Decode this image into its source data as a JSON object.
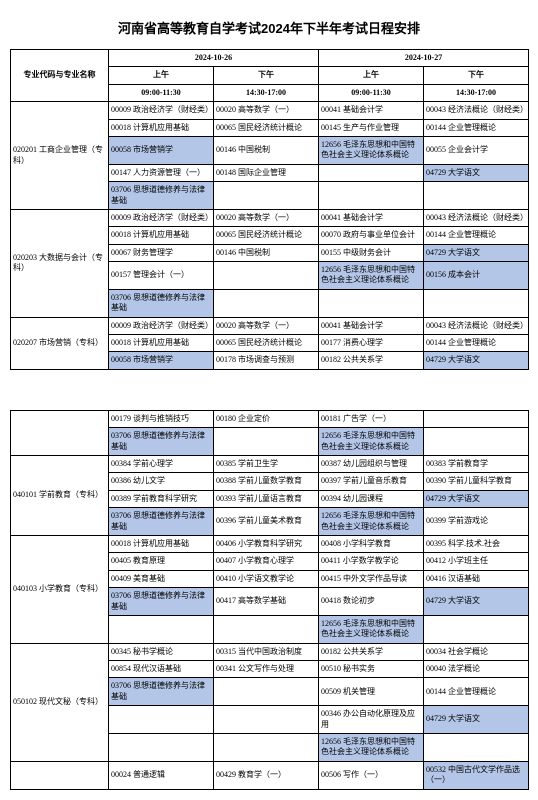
{
  "title": "河南省高等教育自学考试2024年下半年考试日程安排",
  "header": {
    "major_col": "专业代码与专业名称",
    "date1": "2024-10-26",
    "date2": "2024-10-27",
    "am": "上午",
    "pm": "下午",
    "t1": "09:00-11:30",
    "t2": "14:30-17:00"
  },
  "hl_color": "#b4c6e7",
  "colors": {
    "border": "#000000",
    "bg": "#ffffff"
  },
  "majors1": [
    {
      "code": "020201 工商企业管理（专科）",
      "rows": [
        [
          "00009 政治经济学（财经类）",
          "00020 高等数学（一）",
          "00041 基础会计学",
          "00043 经济法概论（财经类）"
        ],
        [
          "00018 计算机应用基础",
          "00065 国民经济统计概论",
          "00145 生产与作业管理",
          "00144 企业管理概论"
        ],
        [
          "00058 市场营销学",
          "00146 中国税制",
          "12656 毛泽东思想和中国特色社会主义理论体系概论",
          "00055 企业会计学"
        ],
        [
          "00147 人力资源管理（一）",
          "00148 国际企业管理",
          "",
          "04729 大学语文"
        ],
        [
          "03706 思想道德修养与法律基础",
          "",
          "",
          ""
        ]
      ],
      "hl": [
        [
          2,
          0
        ],
        [
          3,
          3
        ],
        [
          4,
          0
        ],
        [
          2,
          2
        ]
      ]
    },
    {
      "code": "020203 大数据与会计（专科）",
      "rows": [
        [
          "00009 政治经济学（财经类）",
          "00020 高等数学（一）",
          "00041 基础会计学",
          "00043 经济法概论（财经类）"
        ],
        [
          "00018 计算机应用基础",
          "00065 国民经济统计概论",
          "00070 政府与事业单位会计",
          "00144 企业管理概论"
        ],
        [
          "00067 财务管理学",
          "00146 中国税制",
          "00155 中级财务会计",
          "04729 大学语文"
        ],
        [
          "00157 管理会计（一）",
          "",
          "12656 毛泽东思想和中国特色社会主义理论体系概论",
          "00156 成本会计"
        ],
        [
          "03706 思想道德修养与法律基础",
          "",
          "",
          ""
        ]
      ],
      "hl": [
        [
          2,
          3
        ],
        [
          3,
          3
        ],
        [
          4,
          0
        ],
        [
          3,
          2
        ]
      ]
    },
    {
      "code": "020207 市场营销（专科）",
      "rows": [
        [
          "00009 政治经济学（财经类）",
          "00020 高等数学（一）",
          "00041 基础会计学",
          "00043 经济法概论（财经类）"
        ],
        [
          "00018 计算机应用基础",
          "00065 国民经济统计概论",
          "00177 消费心理学",
          "00144 企业管理概论"
        ],
        [
          "00058 市场营销学",
          "00178 市场调查与预测",
          "00182 公共关系学",
          "04729 大学语文"
        ]
      ],
      "hl": [
        [
          2,
          0
        ],
        [
          2,
          3
        ]
      ]
    }
  ],
  "majors2": [
    {
      "code": "",
      "rows": [
        [
          "00179 谈判与推销技巧",
          "00180 企业定价",
          "00181 广告学（一）",
          ""
        ],
        [
          "03706 思想道德修养与法律基础",
          "",
          "12656 毛泽东思想和中国特色社会主义理论体系概论",
          ""
        ]
      ],
      "hl": [
        [
          1,
          0
        ],
        [
          1,
          2
        ]
      ]
    },
    {
      "code": "040101 学前教育（专科）",
      "rows": [
        [
          "00384 学前心理学",
          "00385 学前卫生学",
          "00387 幼儿园组织与管理",
          "00383 学前教育学"
        ],
        [
          "00386 幼儿文学",
          "00388 学前儿童数学教育",
          "00397 学前儿童音乐教育",
          "00390 学前儿童科学教育"
        ],
        [
          "00389 学前教育科学研究",
          "00393 学前儿童语言教育",
          "00394 幼儿园课程",
          "04729 大学语文"
        ],
        [
          "03706 思想道德修养与法律基础",
          "00396 学前儿童美术教育",
          "12656 毛泽东思想和中国特色社会主义理论体系概论",
          "00399 学前游戏论"
        ]
      ],
      "hl": [
        [
          2,
          3
        ],
        [
          3,
          0
        ],
        [
          3,
          2
        ]
      ]
    },
    {
      "code": "040103 小学教育（专科）",
      "rows": [
        [
          "00018 计算机应用基础",
          "00406 小学教育科学研究",
          "00408 小学科学教育",
          "00395 科学.技术.社会"
        ],
        [
          "00405 教育原理",
          "00407 小学教育心理学",
          "00411 小学数学教学论",
          "00412 小学班主任"
        ],
        [
          "00409 美育基础",
          "00410 小学语文教学论",
          "00415 中外文学作品导读",
          "00416 汉语基础"
        ],
        [
          "03706 思想道德修养与法律基础",
          "00417 高等数学基础",
          "00418 数论初步",
          "04729 大学语文"
        ],
        [
          "",
          "",
          "12656 毛泽东思想和中国特色社会主义理论体系概论",
          ""
        ]
      ],
      "hl": [
        [
          3,
          0
        ],
        [
          3,
          3
        ],
        [
          4,
          2
        ]
      ]
    },
    {
      "code": "050102 现代文秘（专科）",
      "rows": [
        [
          "00345 秘书学概论",
          "00315 当代中国政治制度",
          "00182 公共关系学",
          "00034 社会学概论"
        ],
        [
          "00854 现代汉语基础",
          "00341 公文写作与处理",
          "00510 秘书实务",
          "00040 法学概论"
        ],
        [
          "03706 思想道德修养与法律基础",
          "",
          "00509 机关管理",
          "00144 企业管理概论"
        ],
        [
          "",
          "",
          "00346 办公自动化原理及应用",
          "04729 大学语文"
        ],
        [
          "",
          "",
          "12656 毛泽东思想和中国特色社会主义理论体系概论",
          ""
        ]
      ],
      "hl": [
        [
          2,
          0
        ],
        [
          3,
          3
        ],
        [
          4,
          2
        ]
      ]
    },
    {
      "code": "",
      "rows": [
        [
          "00024 普通逻辑",
          "00429 教育学（一）",
          "00506 写作（一）",
          "00532 中国古代文学作品选（一）"
        ]
      ],
      "hl": [
        [
          0,
          3
        ]
      ]
    }
  ]
}
